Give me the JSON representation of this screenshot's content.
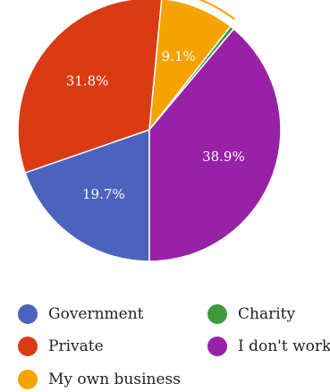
{
  "chart_data": {
    "type": "pie",
    "slices": [
      {
        "label": "Government",
        "value": 19.7,
        "value_label": "19.7%",
        "color": "#4b63bc"
      },
      {
        "label": "Private",
        "value": 31.8,
        "value_label": "31.8%",
        "color": "#db3b14"
      },
      {
        "label": "My own business",
        "value": 9.1,
        "value_label": "9.1%",
        "color": "#f6a300"
      },
      {
        "label": "Charity",
        "value": 0.5,
        "value_label": "",
        "color": "#3e9a3e"
      },
      {
        "label": "I don't work",
        "value": 38.9,
        "value_label": "38.9%",
        "color": "#9821a8"
      }
    ],
    "legend_placement": "bottom",
    "highlighted_slice": "My own business"
  },
  "legend": [
    {
      "label": "Government",
      "color": "#4b63bc"
    },
    {
      "label": "Charity",
      "color": "#3e9a3e"
    },
    {
      "label": "Private",
      "color": "#db3b14"
    },
    {
      "label": "I don't work",
      "color": "#9821a8"
    },
    {
      "label": "My own business",
      "color": "#f6a300"
    }
  ]
}
